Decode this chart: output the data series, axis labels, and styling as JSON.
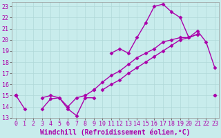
{
  "xlabel": "Windchill (Refroidissement éolien,°C)",
  "bg_color": "#c8ecec",
  "grid_color": "#b0d8d8",
  "line_color": "#aa00aa",
  "xlim": [
    -0.5,
    23.5
  ],
  "ylim": [
    13,
    23.4
  ],
  "yticks": [
    13,
    14,
    15,
    16,
    17,
    18,
    19,
    20,
    21,
    22,
    23
  ],
  "xticks": [
    0,
    1,
    2,
    3,
    4,
    5,
    6,
    7,
    8,
    9,
    10,
    11,
    12,
    13,
    14,
    15,
    16,
    17,
    18,
    19,
    20,
    21,
    22,
    23
  ],
  "hours": [
    0,
    1,
    2,
    3,
    4,
    5,
    6,
    7,
    8,
    9,
    10,
    11,
    12,
    13,
    14,
    15,
    16,
    17,
    18,
    19,
    20,
    21,
    22,
    23
  ],
  "line1": [
    15.0,
    13.8,
    null,
    13.8,
    14.7,
    14.8,
    13.8,
    13.2,
    14.8,
    14.8,
    null,
    null,
    null,
    null,
    null,
    null,
    null,
    null,
    null,
    null,
    null,
    null,
    null,
    null
  ],
  "line2": [
    15.0,
    null,
    null,
    14.8,
    15.0,
    14.8,
    14.0,
    14.8,
    15.0,
    15.5,
    16.2,
    16.8,
    17.2,
    17.8,
    18.4,
    18.8,
    19.2,
    19.8,
    20.0,
    20.2,
    20.2,
    20.5,
    null,
    15.0
  ],
  "line3": [
    15.0,
    null,
    null,
    null,
    null,
    null,
    null,
    null,
    null,
    null,
    15.5,
    16.0,
    16.4,
    17.0,
    17.5,
    18.0,
    18.5,
    19.0,
    19.5,
    20.0,
    20.2,
    20.5,
    null,
    15.0
  ],
  "line4_seg1": [
    0,
    9
  ],
  "line4_seg1_vals": [
    15.0,
    15.5
  ],
  "line4": [
    15.0,
    null,
    null,
    null,
    null,
    null,
    null,
    null,
    null,
    15.5,
    null,
    18.8,
    19.2,
    18.8,
    20.2,
    21.5,
    23.0,
    23.2,
    22.5,
    22.0,
    20.2,
    20.8,
    19.8,
    17.5
  ],
  "marker": "D",
  "markersize": 2.5,
  "linewidth": 1.0,
  "tick_fontsize": 6,
  "xlabel_fontsize": 7
}
